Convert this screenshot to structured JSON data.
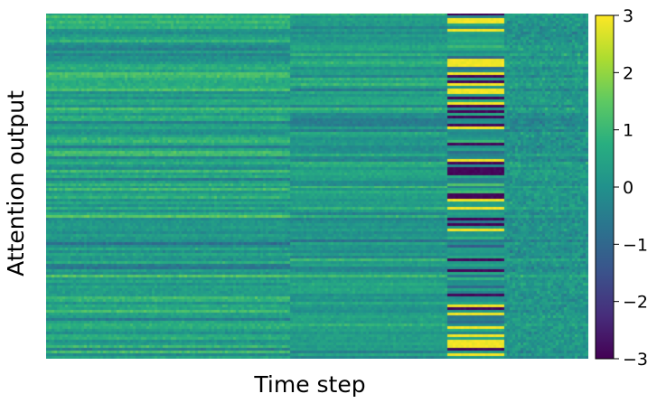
{
  "chart_data": {
    "type": "heatmap",
    "title": "",
    "xlabel": "Time step",
    "ylabel": "Attention output",
    "x_ticks": [],
    "y_ticks": [],
    "grid": false,
    "colormap": "viridis",
    "colorbar": {
      "vmin": -3,
      "vmax": 3,
      "ticks": [
        3,
        2,
        1,
        0,
        -1,
        -2,
        -3
      ],
      "tick_labels": [
        "3",
        "2",
        "1",
        "0",
        "−1",
        "−2",
        "−3"
      ]
    },
    "n_time_steps": 200,
    "n_outputs": 128,
    "segments": [
      {
        "t_start": 0,
        "t_end": 90,
        "description_values": "mostly -0.5 to 1.5, horizontal banding"
      },
      {
        "t_start": 90,
        "t_end": 148,
        "description_values": "mostly 0 to 1, some banding"
      },
      {
        "t_start": 148,
        "t_end": 169,
        "description_values": "strong alternating rows near -3 and +3"
      },
      {
        "t_start": 169,
        "t_end": 200,
        "description_values": "mostly -1 to 1, noisier"
      }
    ]
  }
}
